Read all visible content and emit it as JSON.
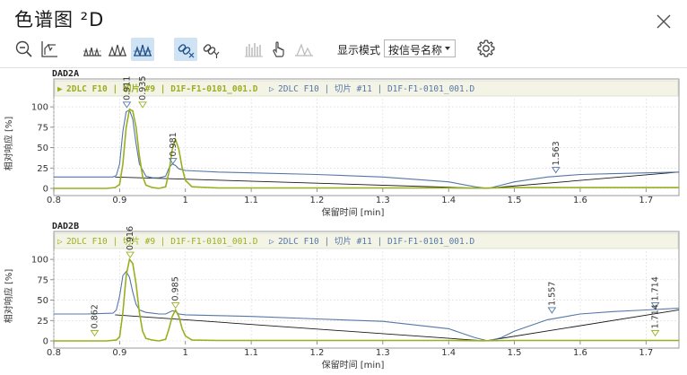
{
  "window": {
    "title": "色谱图 ²D",
    "close_icon": "close-icon"
  },
  "toolbar": {
    "buttons": [
      {
        "icon": "zoom-out-icon"
      },
      {
        "icon": "chart-reset-icon"
      },
      {
        "icon": "peaks-stack-icon"
      },
      {
        "icon": "peaks-overlay-icon"
      },
      {
        "icon": "peaks-mirror-icon",
        "active": true
      },
      {
        "icon": "link-x-icon",
        "active": true
      },
      {
        "icon": "link-y-icon"
      },
      {
        "icon": "bars-icon",
        "disabled": true
      },
      {
        "icon": "hand-pointer-icon"
      },
      {
        "icon": "peak-shape-icon",
        "disabled": true
      }
    ],
    "display_mode_label": "显示模式",
    "display_mode_value": "按信号名称",
    "settings_icon": "gear-icon"
  },
  "colors": {
    "series_a": "#9aaf1f",
    "series_b": "#5577a8",
    "baseline": "#1a1a1a",
    "grid": "#d8d8d8",
    "legend_bg": "#f3f4e6"
  },
  "chart_data": [
    {
      "type": "line",
      "signal": "DAD2A",
      "legend": [
        {
          "marker": "▶",
          "text": "2DLC F10 | 切片 #9 | D1F-F1-0101_001.D"
        },
        {
          "marker": "▷",
          "text": "2DLC F10 | 切片 #11 | D1F-F1-0101_001.D"
        }
      ],
      "ylabel": "相对响应 [%]",
      "xlabel": "保留时间 [min]",
      "xlim": [
        0.8,
        1.75
      ],
      "ylim": [
        0,
        110
      ],
      "xticks": [
        "0.8",
        "0.9",
        "1",
        "1.1",
        "1.2",
        "1.3",
        "1.4",
        "1.5",
        "1.6",
        "1.7"
      ],
      "yticks": [
        "0",
        "25",
        "50",
        "75",
        "100"
      ],
      "series": [
        {
          "name": "2DLC F10 | 切片 #9 | D1F-F1-0101_001.D",
          "x": [
            0.8,
            0.88,
            0.893,
            0.9,
            0.905,
            0.91,
            0.915,
            0.92,
            0.925,
            0.93,
            0.935,
            0.94,
            0.95,
            0.96,
            0.97,
            0.975,
            0.98,
            0.985,
            0.99,
            0.995,
            1.0,
            1.01,
            1.05,
            1.1,
            1.2,
            1.3,
            1.4,
            1.45,
            1.5,
            1.6,
            1.7,
            1.75
          ],
          "y": [
            0,
            0,
            1,
            5,
            30,
            75,
            97,
            95,
            75,
            40,
            15,
            4,
            1,
            0,
            2,
            20,
            48,
            60,
            48,
            25,
            10,
            2,
            0.5,
            0.5,
            0.5,
            0.5,
            0.5,
            0.3,
            1,
            1,
            1,
            1
          ]
        },
        {
          "name": "2DLC F10 | 切片 #11 | D1F-F1-0101_001.D",
          "x": [
            0.8,
            0.89,
            0.895,
            0.9,
            0.905,
            0.91,
            0.915,
            0.92,
            0.925,
            0.93,
            0.94,
            0.95,
            0.96,
            0.97,
            0.975,
            0.98,
            0.985,
            0.99,
            1.0,
            1.05,
            1.1,
            1.2,
            1.3,
            1.4,
            1.44,
            1.46,
            1.48,
            1.5,
            1.55,
            1.6,
            1.65,
            1.7,
            1.75
          ],
          "y": [
            14,
            14,
            16,
            30,
            70,
            94,
            96,
            85,
            55,
            30,
            15,
            13,
            13,
            15,
            25,
            30,
            28,
            24,
            22,
            20,
            19,
            17,
            14,
            8,
            2,
            0,
            4,
            8,
            14,
            17,
            18,
            19,
            20
          ]
        }
      ],
      "baselines": [
        {
          "x": [
            0.893,
            1.456
          ],
          "y": [
            14,
            0
          ]
        },
        {
          "x": [
            1.456,
            1.75
          ],
          "y": [
            0,
            20
          ]
        }
      ],
      "peak_labels": [
        {
          "x": 0.911,
          "y": 97,
          "text": "0.911",
          "series": 1
        },
        {
          "x": 0.935,
          "y": 97,
          "text": "0.935",
          "series": 0
        },
        {
          "x": 0.981,
          "y": 28,
          "text": "0.981",
          "series": 1
        },
        {
          "x": 1.563,
          "y": 17,
          "text": "1.563",
          "series": 1
        }
      ]
    },
    {
      "type": "line",
      "signal": "DAD2B",
      "legend": [
        {
          "marker": "▷",
          "text": "2DLC F10 | 切片 #9 | D1F-F1-0101_001.D"
        },
        {
          "marker": "▷",
          "text": "2DLC F10 | 切片 #11 | D1F-F1-0101_001.D"
        }
      ],
      "ylabel": "相对响应 [%]",
      "xlabel": "保留时间 [min]",
      "xlim": [
        0.8,
        1.75
      ],
      "ylim": [
        0,
        110
      ],
      "xticks": [
        "0.8",
        "0.9",
        "1",
        "1.1",
        "1.2",
        "1.3",
        "1.4",
        "1.5",
        "1.6",
        "1.7"
      ],
      "yticks": [
        "0",
        "25",
        "50",
        "75",
        "100"
      ],
      "series": [
        {
          "name": "2DLC F10 | 切片 #9 | D1F-F1-0101_001.D",
          "x": [
            0.8,
            0.88,
            0.895,
            0.9,
            0.905,
            0.91,
            0.915,
            0.92,
            0.925,
            0.93,
            0.935,
            0.94,
            0.95,
            0.96,
            0.97,
            0.975,
            0.98,
            0.985,
            0.99,
            0.995,
            1.0,
            1.01,
            1.05,
            1.1,
            1.2,
            1.3,
            1.4,
            1.45,
            1.5,
            1.6,
            1.7,
            1.75
          ],
          "y": [
            0,
            0,
            1,
            5,
            35,
            80,
            100,
            95,
            70,
            35,
            12,
            3,
            1,
            0,
            2,
            15,
            30,
            38,
            30,
            15,
            6,
            1,
            0.5,
            0.5,
            0.5,
            0.5,
            0.5,
            0.2,
            0.5,
            0.5,
            0.5,
            0.5
          ]
        },
        {
          "name": "2DLC F10 | 切片 #11 | D1F-F1-0101_001.D",
          "x": [
            0.8,
            0.85,
            0.89,
            0.895,
            0.9,
            0.905,
            0.91,
            0.915,
            0.92,
            0.925,
            0.93,
            0.94,
            0.95,
            0.96,
            0.97,
            0.98,
            0.985,
            0.99,
            1.0,
            1.05,
            1.1,
            1.2,
            1.3,
            1.4,
            1.44,
            1.46,
            1.48,
            1.5,
            1.55,
            1.6,
            1.65,
            1.7,
            1.75
          ],
          "y": [
            33,
            33,
            34,
            38,
            55,
            80,
            85,
            78,
            60,
            45,
            38,
            35,
            34,
            33,
            33,
            37,
            36,
            33,
            32,
            31,
            30,
            27,
            24,
            15,
            4,
            0,
            4,
            12,
            26,
            33,
            36,
            38,
            40
          ]
        }
      ],
      "baselines": [
        {
          "x": [
            0.893,
            1.456
          ],
          "y": [
            32,
            0
          ]
        },
        {
          "x": [
            1.456,
            1.75
          ],
          "y": [
            0,
            38
          ]
        }
      ],
      "peak_labels": [
        {
          "x": 0.862,
          "y": 4,
          "text": "0.862",
          "series": 0
        },
        {
          "x": 0.916,
          "y": 100,
          "text": "0.916",
          "series": 0
        },
        {
          "x": 0.985,
          "y": 38,
          "text": "0.985",
          "series": 0
        },
        {
          "x": 1.557,
          "y": 32,
          "text": "1.557",
          "series": 1
        },
        {
          "x": 1.714,
          "y": 38,
          "text": "1.714",
          "series": 1
        },
        {
          "x": 1.714,
          "y": 4,
          "text": "1.714",
          "series": 0
        }
      ]
    }
  ]
}
